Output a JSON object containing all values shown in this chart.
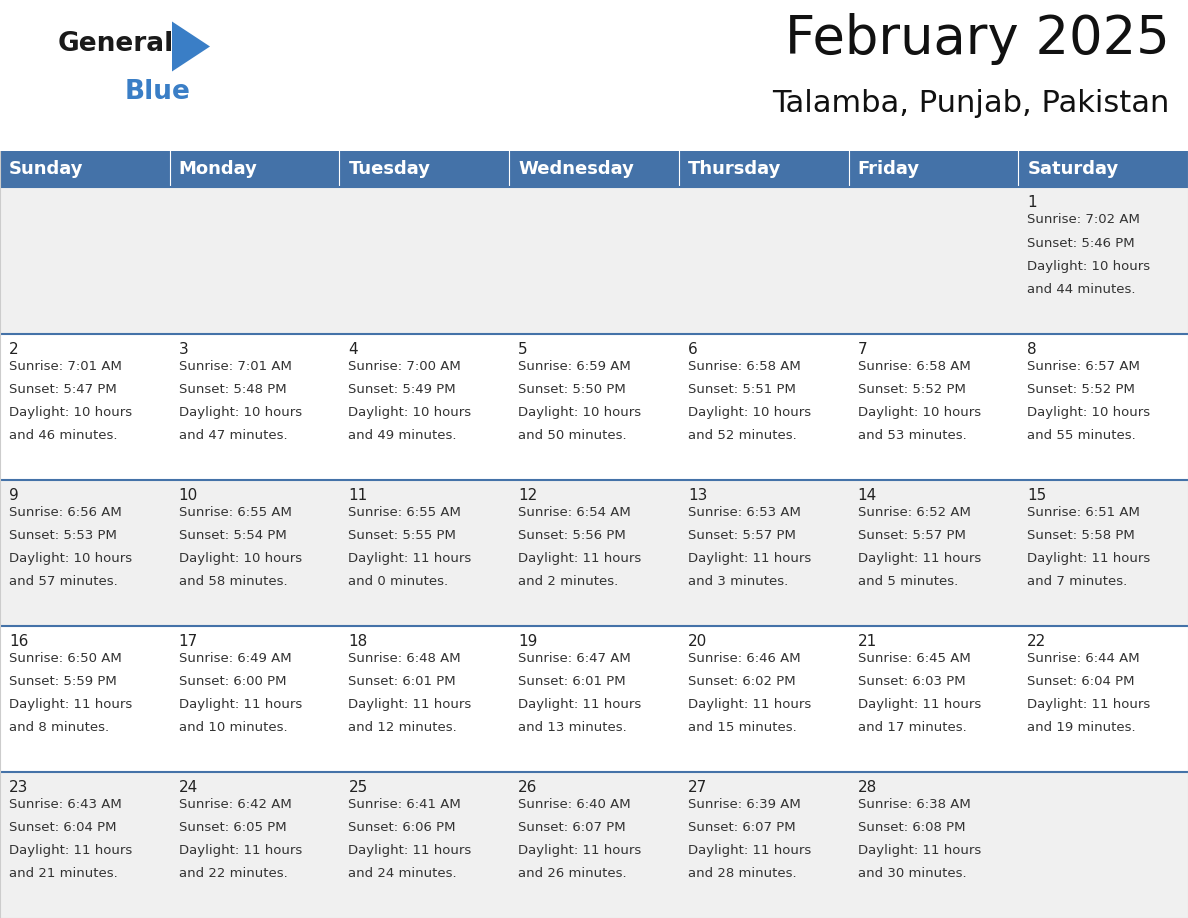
{
  "title": "February 2025",
  "subtitle": "Talamba, Punjab, Pakistan",
  "header_color": "#4472A8",
  "header_text_color": "#FFFFFF",
  "cell_bg_light": "#F0F0F0",
  "cell_bg_white": "#FFFFFF",
  "line_color": "#4472A8",
  "border_color": "#CCCCCC",
  "day_headers": [
    "Sunday",
    "Monday",
    "Tuesday",
    "Wednesday",
    "Thursday",
    "Friday",
    "Saturday"
  ],
  "title_fontsize": 38,
  "subtitle_fontsize": 22,
  "header_fontsize": 13,
  "day_num_fontsize": 11,
  "info_fontsize": 9.5,
  "logo_general_color": "#1a1a1a",
  "logo_blue_color": "#3A7EC6",
  "logo_triangle_color": "#3A7EC6",
  "days": [
    {
      "day": 1,
      "col": 6,
      "row": 0,
      "sunrise": "7:02 AM",
      "sunset": "5:46 PM",
      "daylight": "10 hours and 44 minutes."
    },
    {
      "day": 2,
      "col": 0,
      "row": 1,
      "sunrise": "7:01 AM",
      "sunset": "5:47 PM",
      "daylight": "10 hours and 46 minutes."
    },
    {
      "day": 3,
      "col": 1,
      "row": 1,
      "sunrise": "7:01 AM",
      "sunset": "5:48 PM",
      "daylight": "10 hours and 47 minutes."
    },
    {
      "day": 4,
      "col": 2,
      "row": 1,
      "sunrise": "7:00 AM",
      "sunset": "5:49 PM",
      "daylight": "10 hours and 49 minutes."
    },
    {
      "day": 5,
      "col": 3,
      "row": 1,
      "sunrise": "6:59 AM",
      "sunset": "5:50 PM",
      "daylight": "10 hours and 50 minutes."
    },
    {
      "day": 6,
      "col": 4,
      "row": 1,
      "sunrise": "6:58 AM",
      "sunset": "5:51 PM",
      "daylight": "10 hours and 52 minutes."
    },
    {
      "day": 7,
      "col": 5,
      "row": 1,
      "sunrise": "6:58 AM",
      "sunset": "5:52 PM",
      "daylight": "10 hours and 53 minutes."
    },
    {
      "day": 8,
      "col": 6,
      "row": 1,
      "sunrise": "6:57 AM",
      "sunset": "5:52 PM",
      "daylight": "10 hours and 55 minutes."
    },
    {
      "day": 9,
      "col": 0,
      "row": 2,
      "sunrise": "6:56 AM",
      "sunset": "5:53 PM",
      "daylight": "10 hours and 57 minutes."
    },
    {
      "day": 10,
      "col": 1,
      "row": 2,
      "sunrise": "6:55 AM",
      "sunset": "5:54 PM",
      "daylight": "10 hours and 58 minutes."
    },
    {
      "day": 11,
      "col": 2,
      "row": 2,
      "sunrise": "6:55 AM",
      "sunset": "5:55 PM",
      "daylight": "11 hours and 0 minutes."
    },
    {
      "day": 12,
      "col": 3,
      "row": 2,
      "sunrise": "6:54 AM",
      "sunset": "5:56 PM",
      "daylight": "11 hours and 2 minutes."
    },
    {
      "day": 13,
      "col": 4,
      "row": 2,
      "sunrise": "6:53 AM",
      "sunset": "5:57 PM",
      "daylight": "11 hours and 3 minutes."
    },
    {
      "day": 14,
      "col": 5,
      "row": 2,
      "sunrise": "6:52 AM",
      "sunset": "5:57 PM",
      "daylight": "11 hours and 5 minutes."
    },
    {
      "day": 15,
      "col": 6,
      "row": 2,
      "sunrise": "6:51 AM",
      "sunset": "5:58 PM",
      "daylight": "11 hours and 7 minutes."
    },
    {
      "day": 16,
      "col": 0,
      "row": 3,
      "sunrise": "6:50 AM",
      "sunset": "5:59 PM",
      "daylight": "11 hours and 8 minutes."
    },
    {
      "day": 17,
      "col": 1,
      "row": 3,
      "sunrise": "6:49 AM",
      "sunset": "6:00 PM",
      "daylight": "11 hours and 10 minutes."
    },
    {
      "day": 18,
      "col": 2,
      "row": 3,
      "sunrise": "6:48 AM",
      "sunset": "6:01 PM",
      "daylight": "11 hours and 12 minutes."
    },
    {
      "day": 19,
      "col": 3,
      "row": 3,
      "sunrise": "6:47 AM",
      "sunset": "6:01 PM",
      "daylight": "11 hours and 13 minutes."
    },
    {
      "day": 20,
      "col": 4,
      "row": 3,
      "sunrise": "6:46 AM",
      "sunset": "6:02 PM",
      "daylight": "11 hours and 15 minutes."
    },
    {
      "day": 21,
      "col": 5,
      "row": 3,
      "sunrise": "6:45 AM",
      "sunset": "6:03 PM",
      "daylight": "11 hours and 17 minutes."
    },
    {
      "day": 22,
      "col": 6,
      "row": 3,
      "sunrise": "6:44 AM",
      "sunset": "6:04 PM",
      "daylight": "11 hours and 19 minutes."
    },
    {
      "day": 23,
      "col": 0,
      "row": 4,
      "sunrise": "6:43 AM",
      "sunset": "6:04 PM",
      "daylight": "11 hours and 21 minutes."
    },
    {
      "day": 24,
      "col": 1,
      "row": 4,
      "sunrise": "6:42 AM",
      "sunset": "6:05 PM",
      "daylight": "11 hours and 22 minutes."
    },
    {
      "day": 25,
      "col": 2,
      "row": 4,
      "sunrise": "6:41 AM",
      "sunset": "6:06 PM",
      "daylight": "11 hours and 24 minutes."
    },
    {
      "day": 26,
      "col": 3,
      "row": 4,
      "sunrise": "6:40 AM",
      "sunset": "6:07 PM",
      "daylight": "11 hours and 26 minutes."
    },
    {
      "day": 27,
      "col": 4,
      "row": 4,
      "sunrise": "6:39 AM",
      "sunset": "6:07 PM",
      "daylight": "11 hours and 28 minutes."
    },
    {
      "day": 28,
      "col": 5,
      "row": 4,
      "sunrise": "6:38 AM",
      "sunset": "6:08 PM",
      "daylight": "11 hours and 30 minutes."
    }
  ]
}
